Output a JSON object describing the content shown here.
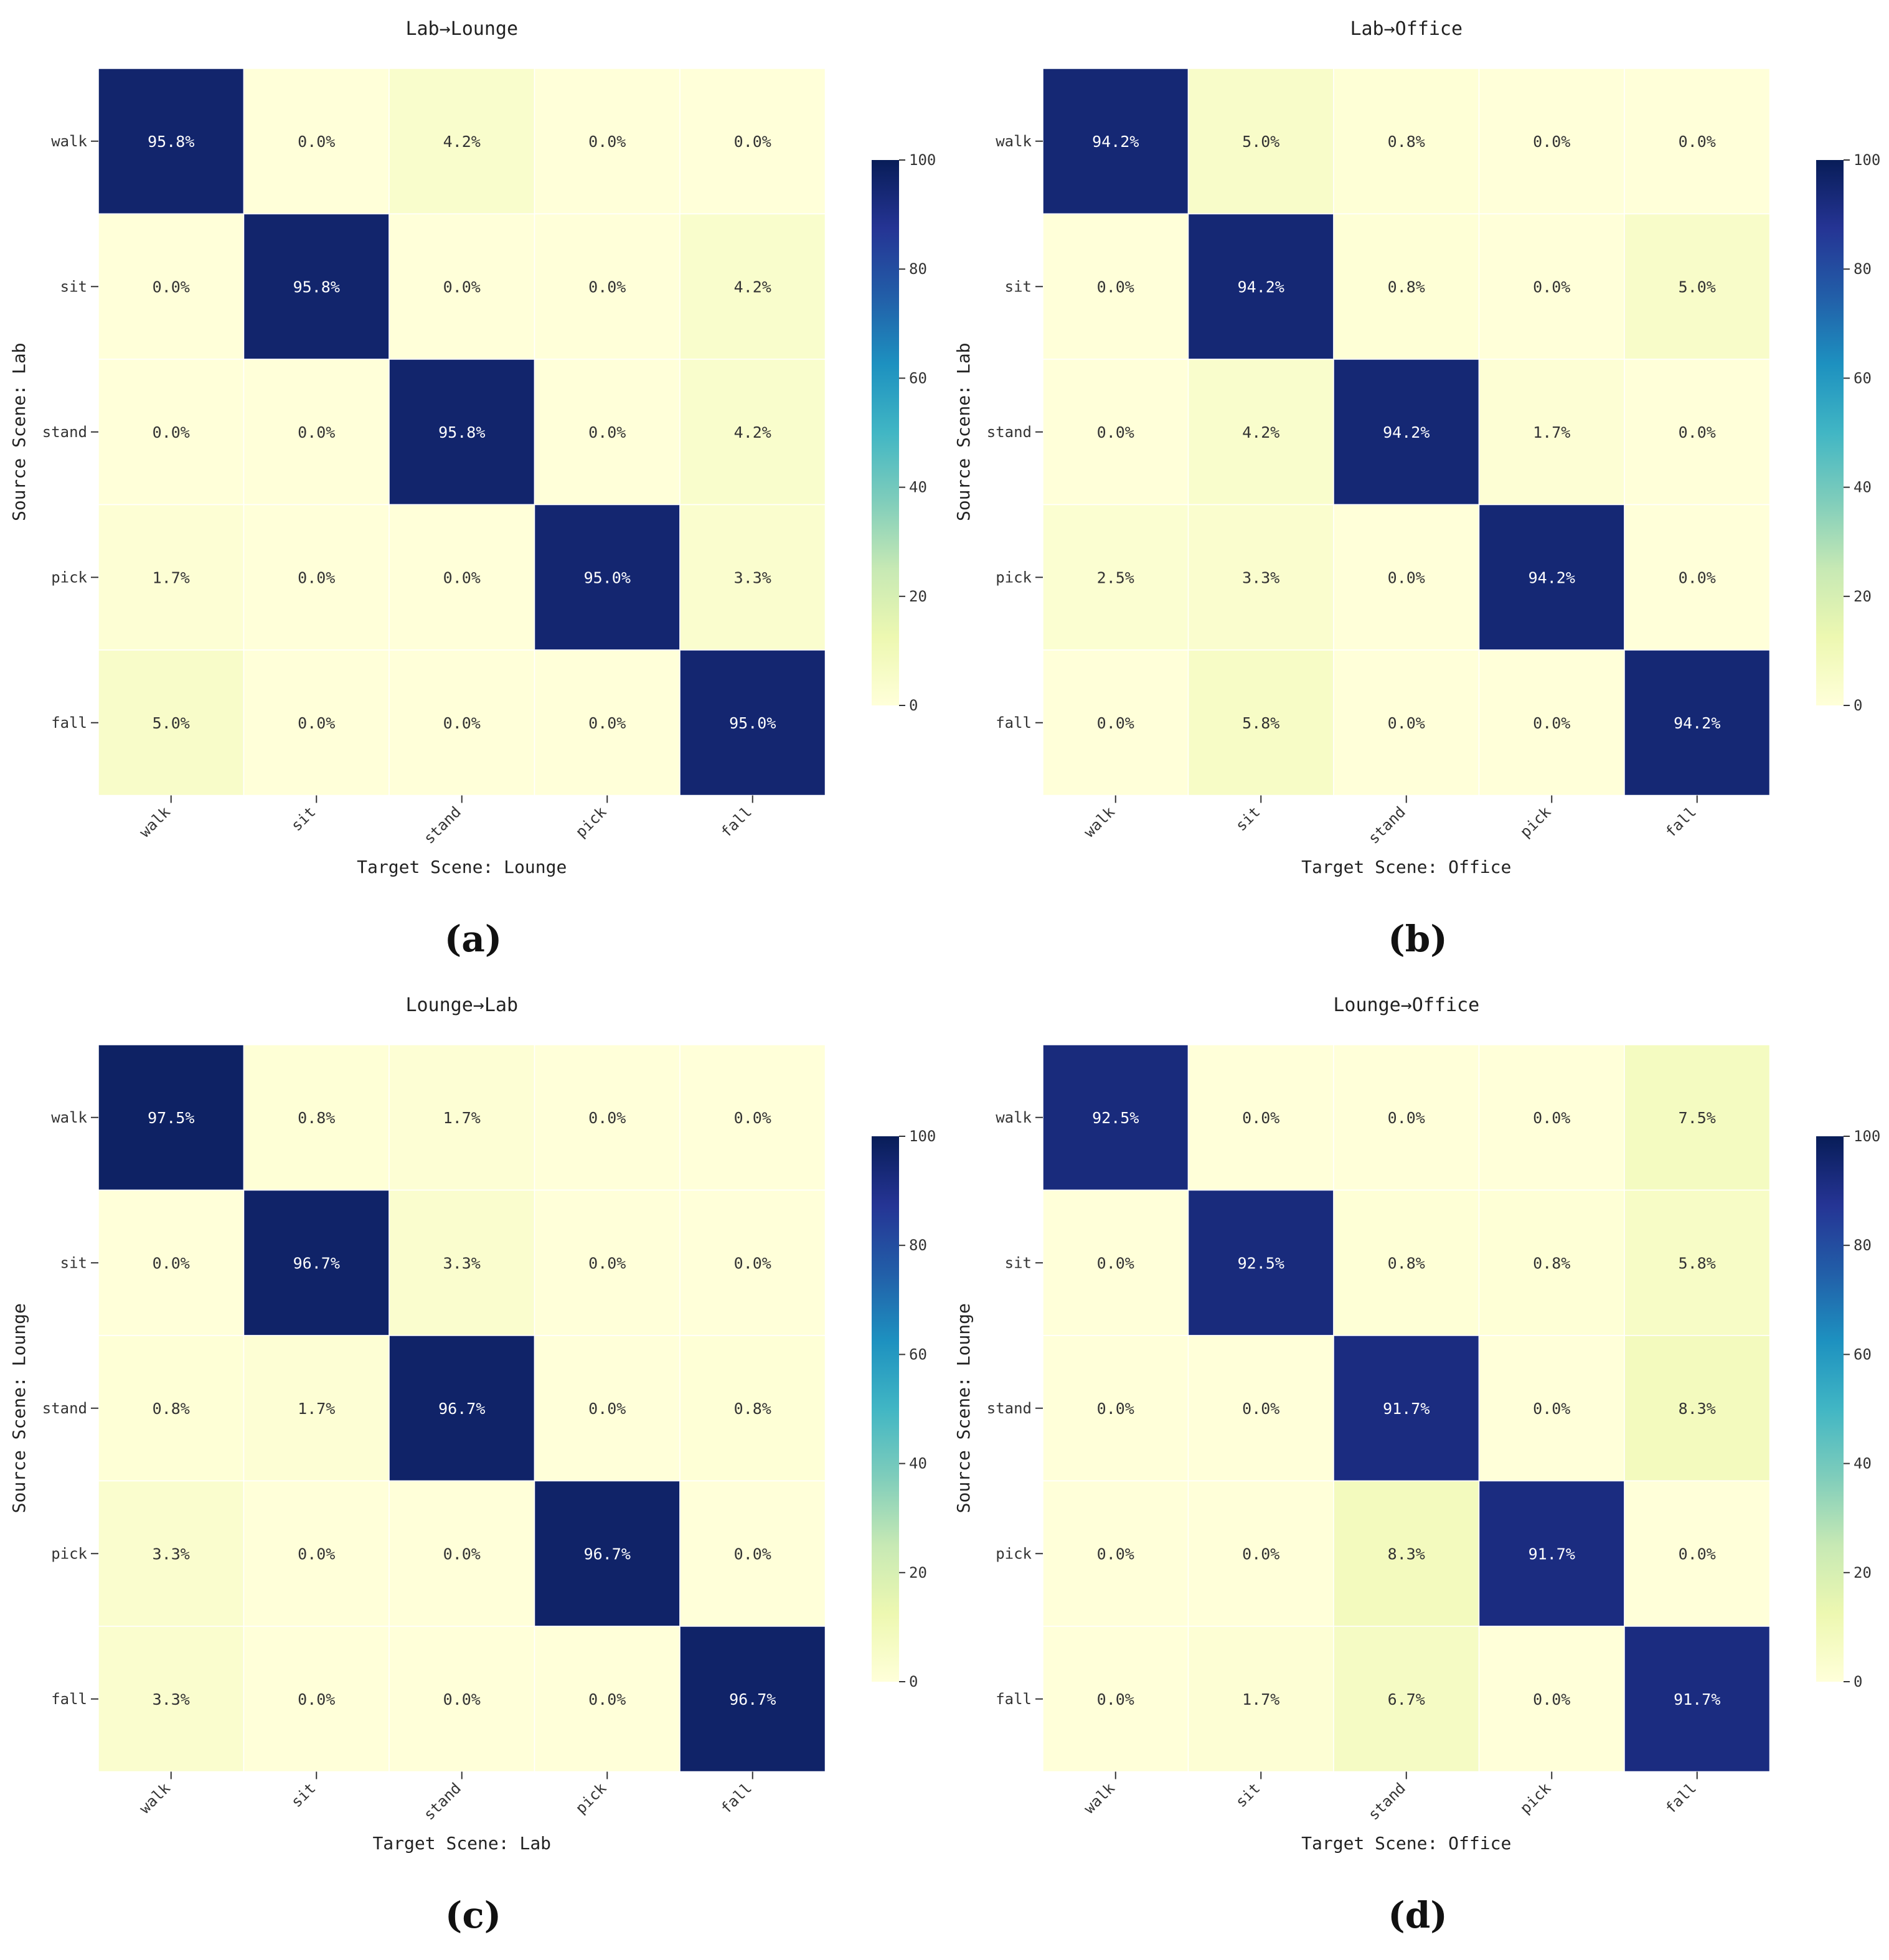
{
  "figure": {
    "colorbar_ticks": [
      "0",
      "20",
      "40",
      "60",
      "80",
      "100"
    ],
    "colormap": [
      "#ffffd9",
      "#edf8b1",
      "#c7e9b4",
      "#7fcdbb",
      "#41b6c4",
      "#1d91c0",
      "#225ea8",
      "#253494",
      "#081d58"
    ]
  },
  "chart_data": [
    {
      "type": "heatmap",
      "title": "Lab→Lounge",
      "xlabel": "Target Scene: Lounge",
      "ylabel": "Source Scene: Lab",
      "caption": "(a)",
      "x_categories": [
        "walk",
        "sit",
        "stand",
        "pick",
        "fall"
      ],
      "y_categories": [
        "walk",
        "sit",
        "stand",
        "pick",
        "fall"
      ],
      "values": [
        [
          95.8,
          0.0,
          4.2,
          0.0,
          0.0
        ],
        [
          0.0,
          95.8,
          0.0,
          0.0,
          4.2
        ],
        [
          0.0,
          0.0,
          95.8,
          0.0,
          4.2
        ],
        [
          1.7,
          0.0,
          0.0,
          95.0,
          3.3
        ],
        [
          5.0,
          0.0,
          0.0,
          0.0,
          95.0
        ]
      ],
      "colorbar_range": [
        0,
        100
      ]
    },
    {
      "type": "heatmap",
      "title": "Lab→Office",
      "xlabel": "Target Scene: Office",
      "ylabel": "Source Scene: Lab",
      "caption": "(b)",
      "x_categories": [
        "walk",
        "sit",
        "stand",
        "pick",
        "fall"
      ],
      "y_categories": [
        "walk",
        "sit",
        "stand",
        "pick",
        "fall"
      ],
      "values": [
        [
          94.2,
          5.0,
          0.8,
          0.0,
          0.0
        ],
        [
          0.0,
          94.2,
          0.8,
          0.0,
          5.0
        ],
        [
          0.0,
          4.2,
          94.2,
          1.7,
          0.0
        ],
        [
          2.5,
          3.3,
          0.0,
          94.2,
          0.0
        ],
        [
          0.0,
          5.8,
          0.0,
          0.0,
          94.2
        ]
      ],
      "colorbar_range": [
        0,
        100
      ]
    },
    {
      "type": "heatmap",
      "title": "Lounge→Lab",
      "xlabel": "Target Scene: Lab",
      "ylabel": "Source Scene: Lounge",
      "caption": "(c)",
      "x_categories": [
        "walk",
        "sit",
        "stand",
        "pick",
        "fall"
      ],
      "y_categories": [
        "walk",
        "sit",
        "stand",
        "pick",
        "fall"
      ],
      "values": [
        [
          97.5,
          0.8,
          1.7,
          0.0,
          0.0
        ],
        [
          0.0,
          96.7,
          3.3,
          0.0,
          0.0
        ],
        [
          0.8,
          1.7,
          96.7,
          0.0,
          0.8
        ],
        [
          3.3,
          0.0,
          0.0,
          96.7,
          0.0
        ],
        [
          3.3,
          0.0,
          0.0,
          0.0,
          96.7
        ]
      ],
      "colorbar_range": [
        0,
        100
      ]
    },
    {
      "type": "heatmap",
      "title": "Lounge→Office",
      "xlabel": "Target Scene: Office",
      "ylabel": "Source Scene: Lounge",
      "caption": "(d)",
      "x_categories": [
        "walk",
        "sit",
        "stand",
        "pick",
        "fall"
      ],
      "y_categories": [
        "walk",
        "sit",
        "stand",
        "pick",
        "fall"
      ],
      "values": [
        [
          92.5,
          0.0,
          0.0,
          0.0,
          7.5
        ],
        [
          0.0,
          92.5,
          0.8,
          0.8,
          5.8
        ],
        [
          0.0,
          0.0,
          91.7,
          0.0,
          8.3
        ],
        [
          0.0,
          0.0,
          8.3,
          91.7,
          0.0
        ],
        [
          0.0,
          1.7,
          6.7,
          0.0,
          91.7
        ]
      ],
      "colorbar_range": [
        0,
        100
      ]
    }
  ]
}
